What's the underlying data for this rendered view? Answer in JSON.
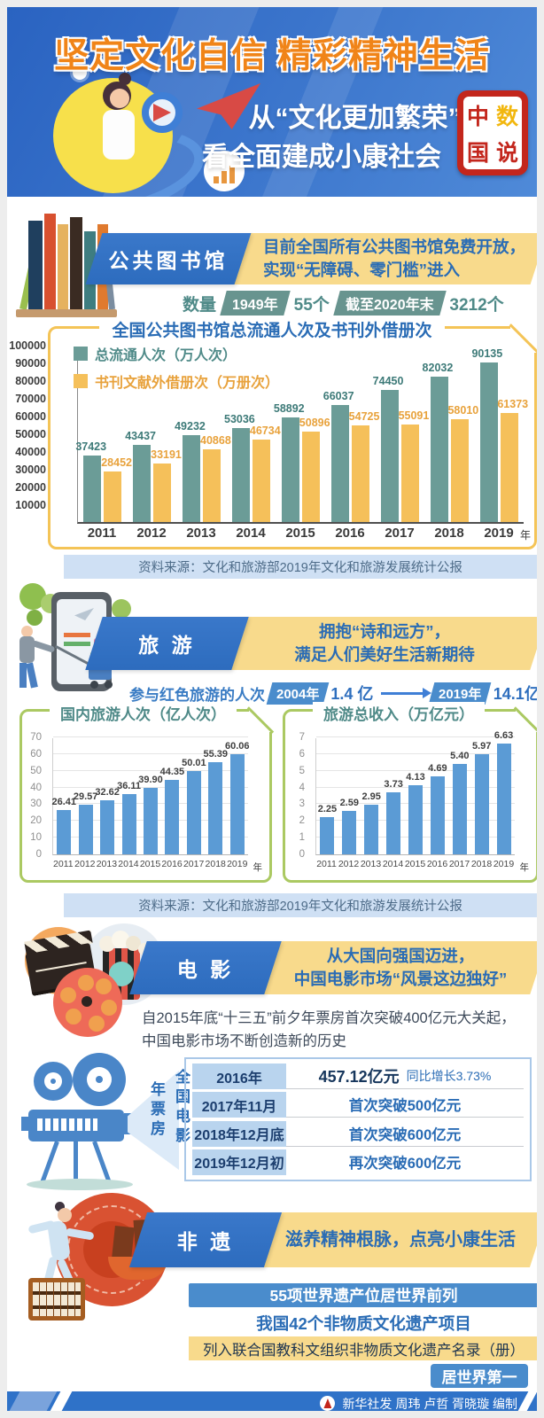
{
  "header": {
    "title": "坚定文化自信 精彩精神生活",
    "subtitle_line1": "从“文化更加繁荣”",
    "subtitle_line2": "看全面建成小康社会",
    "seal": {
      "c1": "中",
      "c2": "数",
      "c3": "国",
      "c4": "说"
    }
  },
  "library": {
    "banner_title": "公共图书馆",
    "desc_line1": "目前全国所有公共图书馆免费开放，",
    "desc_line2": "实现“无障碍、零门槛”进入",
    "count_label": "数量",
    "count_tag1": "1949年",
    "count_val1": "55个",
    "count_tag2": "截至2020年末",
    "count_val2": "3212个",
    "source": "资料来源：文化和旅游部2019年文化和旅游发展统计公报"
  },
  "tourism": {
    "banner_title": "旅 游",
    "desc_line1": "拥抱“诗和远方”，",
    "desc_line2": "满足人们美好生活新期待",
    "red_label": "参与红色旅游的人次",
    "red_tag1": "2004年",
    "red_val1": "1.4 亿",
    "red_tag2": "2019年",
    "red_val2": "14.1亿",
    "source": "资料来源：文化和旅游部2019年文化和旅游发展统计公报"
  },
  "movie": {
    "banner_title": "电 影",
    "desc_line1": "从大国向强国迈进，",
    "desc_line2": "中国电影市场“风景这边独好”",
    "para_line1": "自2015年底“十三五”前夕年票房首次突破400亿元大关起，",
    "para_line2": "中国电影市场不断创造新的历史",
    "vertical_label_left": "年票房",
    "vertical_label_right": "全国电影",
    "table": [
      {
        "date": "2016年",
        "value": "457.12亿元",
        "note": "同比增长3.73%"
      },
      {
        "date": "2017年11月",
        "value": "首次突破500亿元"
      },
      {
        "date": "2018年12月底",
        "value": "首次突破600亿元"
      },
      {
        "date": "2019年12月初",
        "value": "再次突破600亿元"
      }
    ]
  },
  "heritage": {
    "banner_title": "非 遗",
    "desc": "滋养精神根脉，点亮小康生活",
    "bar1": "55项世界遗产位居世界前列",
    "line2": "我国42个非物质文化遗产项目",
    "bar2": "列入联合国教科文组织非物质文化遗产名录（册）",
    "badge": "居世界第一"
  },
  "footer": {
    "credit": "新华社发 周玮 卢哲 胥晓璇 编制"
  },
  "colors": {
    "header_blue": "#2a63c1",
    "title_orange": "#f08418",
    "banner_blue": "#2d6cbe",
    "banner_yellow": "#f8da8c",
    "text_blue": "#2a6cb5",
    "teal_bar": "#6b9c97",
    "orange_bar": "#f5c05a",
    "blue_bar": "#5b9bd5",
    "seal_red": "#c3261c",
    "source_bg": "#cfe0f4"
  },
  "chart_data": [
    {
      "type": "bar",
      "title": "全国公共图书馆总流通人次及书刊外借册次",
      "categories": [
        "2011",
        "2012",
        "2013",
        "2014",
        "2015",
        "2016",
        "2017",
        "2018",
        "2019"
      ],
      "x_suffix": "年",
      "series": [
        {
          "name": "总流通人次（万人次）",
          "color": "#6b9c97",
          "label_color": "#3d7a78",
          "values": [
            37423,
            43437,
            49232,
            53036,
            58892,
            66037,
            74450,
            82032,
            90135
          ]
        },
        {
          "name": "书刊文献外借册次（万册次）",
          "color": "#f5c05a",
          "label_color": "#e8a23c",
          "values": [
            28452,
            33191,
            40868,
            46734,
            50896,
            54725,
            55091,
            58010,
            61373
          ]
        }
      ],
      "ylim": [
        0,
        100000
      ],
      "ytick": 10000,
      "legend_position": "top-left",
      "grid": false
    },
    {
      "type": "bar",
      "title": "国内旅游人次（亿人次）",
      "categories": [
        "2011",
        "2012",
        "2013",
        "2014",
        "2015",
        "2016",
        "2017",
        "2018",
        "2019"
      ],
      "x_suffix": "年",
      "values": [
        26.41,
        29.57,
        32.62,
        36.11,
        39.9,
        44.35,
        50.01,
        55.39,
        60.06
      ],
      "labels": [
        "26.41",
        "29.57",
        "32.62",
        "36.11",
        "39.90",
        "44.35",
        "50.01",
        "55.39",
        "60.06"
      ],
      "ylim": [
        0,
        70
      ],
      "ytick": 10,
      "color": "#5b9bd5",
      "grid": true
    },
    {
      "type": "bar",
      "title": "旅游总收入（万亿元）",
      "categories": [
        "2011",
        "2012",
        "2013",
        "2014",
        "2015",
        "2016",
        "2017",
        "2018",
        "2019"
      ],
      "x_suffix": "年",
      "values": [
        2.25,
        2.59,
        2.95,
        3.73,
        4.13,
        4.69,
        5.4,
        5.97,
        6.63
      ],
      "labels": [
        "2.25",
        "2.59",
        "2.95",
        "3.73",
        "4.13",
        "4.69",
        "5.40",
        "5.97",
        "6.63"
      ],
      "ylim": [
        0,
        7
      ],
      "ytick": 1,
      "color": "#5b9bd5",
      "grid": true
    }
  ]
}
